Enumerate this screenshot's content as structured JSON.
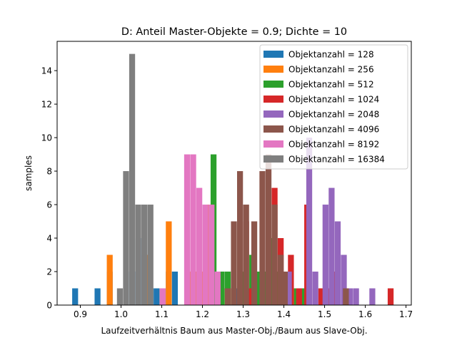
{
  "chart_data": {
    "type": "bar",
    "title": "D: Anteil Master-Objekte = 0.9; Dichte = 10",
    "xlabel": "Laufzeitverhältnis Baum aus Master-Obj./Baum aus Slave-Obj.",
    "ylabel": "samples",
    "xlim": [
      0.843,
      1.713
    ],
    "ylim": [
      0,
      15.75
    ],
    "xticks": [
      "0.9",
      "1.0",
      "1.1",
      "1.2",
      "1.3",
      "1.4",
      "1.5",
      "1.6",
      "1.7"
    ],
    "yticks": [
      "0",
      "2",
      "4",
      "6",
      "8",
      "10",
      "12",
      "14"
    ],
    "legend_position": "upper right",
    "bin_width": 0.0145,
    "series": [
      {
        "name": "Objektanzahl = 128",
        "color": "#1f77b4",
        "bins": [
          [
            0.88,
            1
          ],
          [
            0.935,
            1
          ],
          [
            0.965,
            2
          ],
          [
            1.02,
            2
          ],
          [
            1.035,
            4
          ],
          [
            1.05,
            3
          ],
          [
            1.065,
            1
          ],
          [
            1.08,
            1
          ],
          [
            1.11,
            2
          ],
          [
            1.125,
            2
          ],
          [
            1.19,
            2
          ],
          [
            1.205,
            2
          ],
          [
            1.22,
            2
          ],
          [
            1.275,
            1
          ],
          [
            1.29,
            1
          ]
        ]
      },
      {
        "name": "Objektanzahl = 256",
        "color": "#ff7f0e",
        "bins": [
          [
            0.965,
            3
          ],
          [
            1.055,
            3
          ],
          [
            1.095,
            1
          ],
          [
            1.11,
            5
          ],
          [
            1.165,
            2
          ],
          [
            1.18,
            2
          ],
          [
            1.195,
            2
          ],
          [
            1.21,
            6
          ],
          [
            1.24,
            1
          ],
          [
            1.255,
            1
          ],
          [
            1.305,
            1
          ],
          [
            1.335,
            1
          ],
          [
            1.36,
            1
          ],
          [
            1.375,
            1
          ],
          [
            1.42,
            1
          ]
        ]
      },
      {
        "name": "Objektanzahl = 512",
        "color": "#2ca02c",
        "bins": [
          [
            1.22,
            9
          ],
          [
            1.24,
            2
          ],
          [
            1.255,
            2
          ],
          [
            1.29,
            2
          ],
          [
            1.315,
            3
          ],
          [
            1.33,
            2
          ],
          [
            1.35,
            2
          ],
          [
            1.365,
            4
          ],
          [
            1.38,
            2
          ],
          [
            1.395,
            1
          ],
          [
            1.41,
            1
          ],
          [
            1.425,
            1
          ],
          [
            1.44,
            1
          ]
        ]
      },
      {
        "name": "Objektanzahl = 1024",
        "color": "#d62728",
        "bins": [
          [
            1.3,
            5
          ],
          [
            1.31,
            1
          ],
          [
            1.37,
            7
          ],
          [
            1.385,
            4
          ],
          [
            1.41,
            3
          ],
          [
            1.43,
            1
          ],
          [
            1.45,
            6
          ],
          [
            1.47,
            1
          ],
          [
            1.485,
            1
          ],
          [
            1.505,
            1
          ],
          [
            1.52,
            2
          ],
          [
            1.655,
            1
          ]
        ]
      },
      {
        "name": "Objektanzahl = 2048",
        "color": "#9467bd",
        "bins": [
          [
            1.405,
            2
          ],
          [
            1.455,
            10
          ],
          [
            1.47,
            2
          ],
          [
            1.495,
            6
          ],
          [
            1.51,
            7
          ],
          [
            1.525,
            5
          ],
          [
            1.54,
            3
          ],
          [
            1.555,
            1
          ],
          [
            1.57,
            1
          ],
          [
            1.61,
            1
          ]
        ]
      },
      {
        "name": "Objektanzahl = 4096",
        "color": "#8c564b",
        "bins": [
          [
            1.255,
            1
          ],
          [
            1.27,
            5
          ],
          [
            1.285,
            8
          ],
          [
            1.3,
            6
          ],
          [
            1.32,
            5
          ],
          [
            1.34,
            8
          ],
          [
            1.355,
            9
          ],
          [
            1.37,
            6
          ],
          [
            1.385,
            3
          ],
          [
            1.395,
            2
          ],
          [
            1.545,
            1
          ]
        ]
      },
      {
        "name": "Objektanzahl = 8192",
        "color": "#e377c2",
        "bins": [
          [
            1.095,
            1
          ],
          [
            1.155,
            9
          ],
          [
            1.17,
            9
          ],
          [
            1.185,
            7
          ],
          [
            1.2,
            6
          ],
          [
            1.215,
            6
          ],
          [
            1.23,
            2
          ]
        ]
      },
      {
        "name": "Objektanzahl = 16384",
        "color": "#7f7f7f",
        "bins": [
          [
            0.99,
            1
          ],
          [
            1.005,
            8
          ],
          [
            1.02,
            15
          ],
          [
            1.035,
            6
          ],
          [
            1.05,
            6
          ],
          [
            1.065,
            6
          ]
        ]
      }
    ]
  }
}
